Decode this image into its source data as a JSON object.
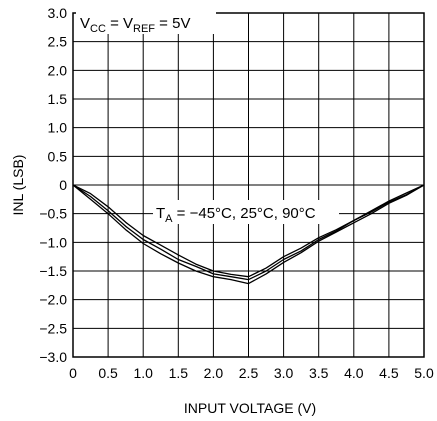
{
  "chart_data": {
    "type": "line",
    "title": "",
    "xlabel": "INPUT VOLTAGE (V)",
    "ylabel": "INL (LSB)",
    "xlim": [
      0,
      5
    ],
    "ylim": [
      -3,
      3
    ],
    "x_ticks": [
      0,
      0.5,
      1,
      1.5,
      2,
      2.5,
      3,
      3.5,
      4,
      4.5,
      5
    ],
    "x_tick_labels": [
      "0",
      "0.5",
      "1.0",
      "1.5",
      "2.0",
      "2.5",
      "3.0",
      "3.5",
      "4.0",
      "4.5",
      "5.0"
    ],
    "y_ticks": [
      3,
      2.5,
      2,
      1.5,
      1,
      0.5,
      0,
      -0.5,
      -1,
      -1.5,
      -2,
      -2.5,
      -3
    ],
    "y_tick_labels": [
      "3.0",
      "2.5",
      "2.0",
      "1.5",
      "1.0",
      "0.5",
      "0",
      "−0.5",
      "−1.0",
      "−1.5",
      "−2.0",
      "−2.5",
      "−3.0"
    ],
    "grid": true,
    "annotations": {
      "conditions": {
        "v1": "V",
        "v1_sub": "CC",
        "eq1": " = V",
        "v2_sub": "REF",
        "eq2": " = 5V"
      },
      "temps": {
        "t": "T",
        "t_sub": "A",
        "rest": " = −45°C, 25°C, 90°C"
      }
    },
    "series": [
      {
        "x": [
          0,
          0.25,
          0.5,
          0.75,
          1.0,
          1.25,
          1.5,
          1.75,
          2.0,
          2.25,
          2.5,
          2.75,
          3.0,
          3.25,
          3.5,
          3.75,
          4.0,
          4.25,
          4.5,
          4.75,
          5.0
        ],
        "y": [
          0,
          -0.2,
          -0.45,
          -0.72,
          -0.95,
          -1.12,
          -1.3,
          -1.42,
          -1.55,
          -1.6,
          -1.65,
          -1.5,
          -1.3,
          -1.15,
          -0.95,
          -0.8,
          -0.62,
          -0.47,
          -0.3,
          -0.17,
          0
        ]
      },
      {
        "x": [
          0,
          0.25,
          0.5,
          0.75,
          1.0,
          1.25,
          1.5,
          1.75,
          2.0,
          2.25,
          2.5,
          2.75,
          3.0,
          3.25,
          3.5,
          3.75,
          4.0,
          4.25,
          4.5,
          4.75,
          5.0
        ],
        "y": [
          0,
          -0.15,
          -0.38,
          -0.65,
          -0.88,
          -1.05,
          -1.22,
          -1.38,
          -1.5,
          -1.56,
          -1.6,
          -1.45,
          -1.25,
          -1.1,
          -0.92,
          -0.78,
          -0.62,
          -0.45,
          -0.28,
          -0.14,
          0
        ]
      },
      {
        "x": [
          0,
          0.25,
          0.5,
          0.75,
          1.0,
          1.25,
          1.5,
          1.75,
          2.0,
          2.25,
          2.5,
          2.75,
          3.0,
          3.25,
          3.5,
          3.75,
          4.0,
          4.25,
          4.5,
          4.75,
          5.0
        ],
        "y": [
          0,
          -0.25,
          -0.5,
          -0.78,
          -1.02,
          -1.2,
          -1.36,
          -1.5,
          -1.6,
          -1.65,
          -1.72,
          -1.55,
          -1.35,
          -1.18,
          -0.98,
          -0.82,
          -0.66,
          -0.5,
          -0.32,
          -0.18,
          0
        ]
      }
    ]
  }
}
